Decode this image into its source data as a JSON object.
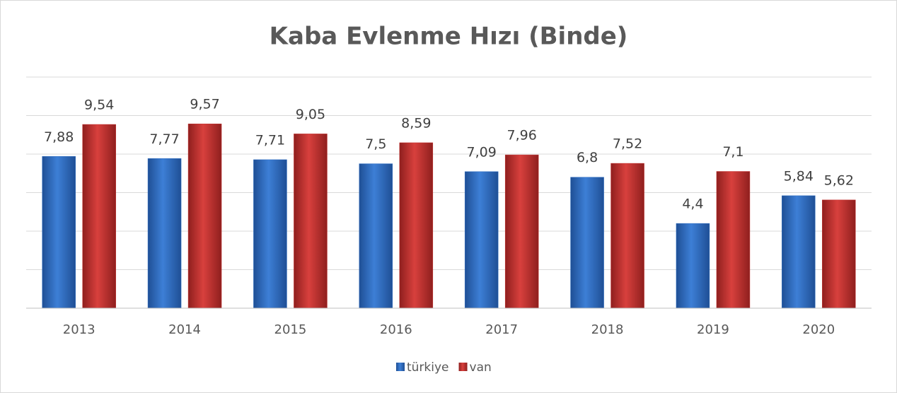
{
  "chart_data": {
    "type": "bar",
    "title": "Kaba Evlenme Hızı (Binde)",
    "categories": [
      "2013",
      "2014",
      "2015",
      "2016",
      "2017",
      "2018",
      "2019",
      "2020"
    ],
    "series": [
      {
        "name": "türkiye",
        "color": "#2f6ec2",
        "values": [
          7.88,
          7.77,
          7.71,
          7.5,
          7.09,
          6.8,
          4.4,
          5.84
        ],
        "value_labels": [
          "7,88",
          "7,77",
          "7,71",
          "7,5",
          "7,09",
          "6,8",
          "4,4",
          "5,84"
        ]
      },
      {
        "name": "van",
        "color": "#c3302e",
        "values": [
          9.54,
          9.57,
          9.05,
          8.59,
          7.96,
          7.52,
          7.1,
          5.62
        ],
        "value_labels": [
          "9,54",
          "9,57",
          "9,05",
          "8,59",
          "7,96",
          "7,52",
          "7,1",
          "5,62"
        ]
      }
    ],
    "ylim": [
      0,
      12
    ],
    "yticks": [
      0,
      2,
      4,
      6,
      8,
      10,
      12
    ],
    "grid": true,
    "legend": "bottom"
  }
}
